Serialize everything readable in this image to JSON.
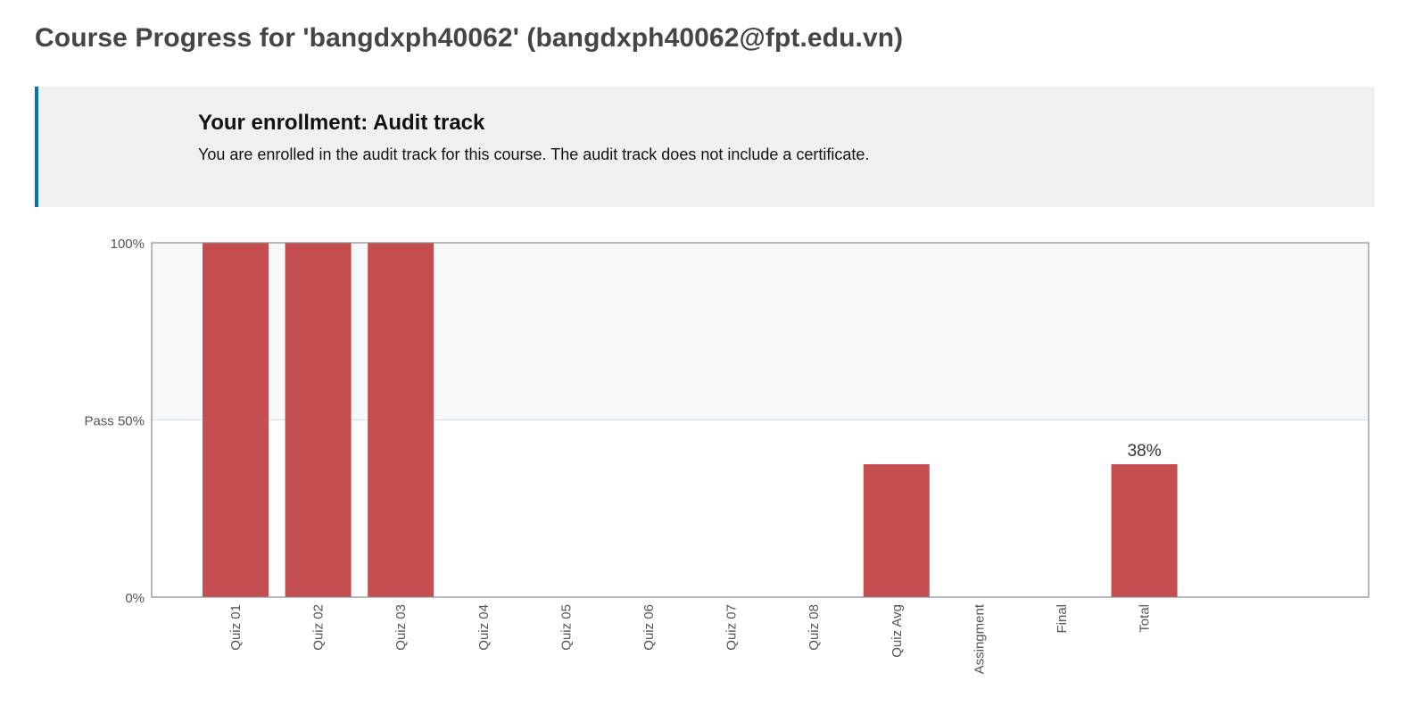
{
  "header": {
    "title": "Course Progress for 'bangdxph40062' (bangdxph40062@fpt.edu.vn)"
  },
  "enrollment": {
    "title": "Your enrollment: Audit track",
    "message": "You are enrolled in the audit track for this course. The audit track does not include a certificate."
  },
  "colors": {
    "bar": "#c44e4f",
    "accent": "#0075b4",
    "pass_region": "#f7f8fa"
  },
  "chart_data": {
    "type": "bar",
    "categories": [
      "Quiz 01",
      "Quiz 02",
      "Quiz 03",
      "Quiz 04",
      "Quiz 05",
      "Quiz 06",
      "Quiz 07",
      "Quiz 08",
      "Quiz Avg",
      "Assingment",
      "Final",
      "Total"
    ],
    "values": [
      100,
      100,
      100,
      0,
      0,
      0,
      0,
      0,
      37.5,
      0,
      0,
      37.5
    ],
    "ylim": [
      0,
      100
    ],
    "yticks": [
      {
        "value": 0,
        "label": "0%"
      },
      {
        "value": 50,
        "label": "Pass 50%"
      },
      {
        "value": 100,
        "label": "100%"
      }
    ],
    "annotations": [
      {
        "category": "Total",
        "label": "38%"
      }
    ],
    "xlabel": "",
    "ylabel": ""
  }
}
